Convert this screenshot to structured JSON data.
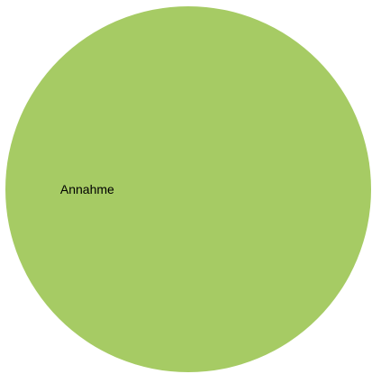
{
  "chart_data": {
    "type": "pie",
    "title": "",
    "slices": [
      {
        "label": "Annahme",
        "value": 100,
        "color": "#a6cb64"
      }
    ],
    "legend": "none"
  }
}
